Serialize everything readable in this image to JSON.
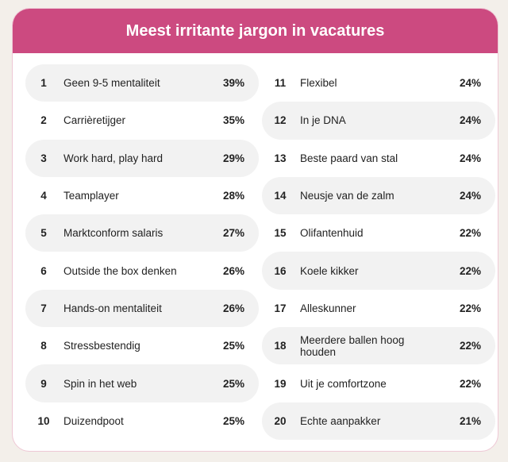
{
  "chart_data": {
    "type": "table",
    "title": "Meest irritante jargon in vacatures",
    "rows": [
      {
        "rank": "1",
        "term": "Geen 9-5 mentaliteit",
        "pct": "39%"
      },
      {
        "rank": "2",
        "term": "Carrièretijger",
        "pct": "35%"
      },
      {
        "rank": "3",
        "term": "Work hard, play hard",
        "pct": "29%"
      },
      {
        "rank": "4",
        "term": "Teamplayer",
        "pct": "28%"
      },
      {
        "rank": "5",
        "term": "Marktconform salaris",
        "pct": "27%"
      },
      {
        "rank": "6",
        "term": "Outside the box denken",
        "pct": "26%"
      },
      {
        "rank": "7",
        "term": "Hands-on mentaliteit",
        "pct": "26%"
      },
      {
        "rank": "8",
        "term": "Stressbestendig",
        "pct": "25%"
      },
      {
        "rank": "9",
        "term": "Spin in het web",
        "pct": "25%"
      },
      {
        "rank": "10",
        "term": "Duizendpoot",
        "pct": "25%"
      },
      {
        "rank": "11",
        "term": "Flexibel",
        "pct": "24%"
      },
      {
        "rank": "12",
        "term": "In je DNA",
        "pct": "24%"
      },
      {
        "rank": "13",
        "term": "Beste paard van stal",
        "pct": "24%"
      },
      {
        "rank": "14",
        "term": "Neusje van de zalm",
        "pct": "24%"
      },
      {
        "rank": "15",
        "term": "Olifantenhuid",
        "pct": "22%"
      },
      {
        "rank": "16",
        "term": "Koele kikker",
        "pct": "22%"
      },
      {
        "rank": "17",
        "term": "Alleskunner",
        "pct": "22%"
      },
      {
        "rank": "18",
        "term": "Meerdere ballen hoog houden",
        "pct": "22%"
      },
      {
        "rank": "19",
        "term": "Uit je comfortzone",
        "pct": "22%"
      },
      {
        "rank": "20",
        "term": "Echte aanpakker",
        "pct": "21%"
      }
    ]
  },
  "colors": {
    "header": "#cc4a80",
    "row_shade": "#f2f2f2",
    "background": "#f3efea"
  }
}
